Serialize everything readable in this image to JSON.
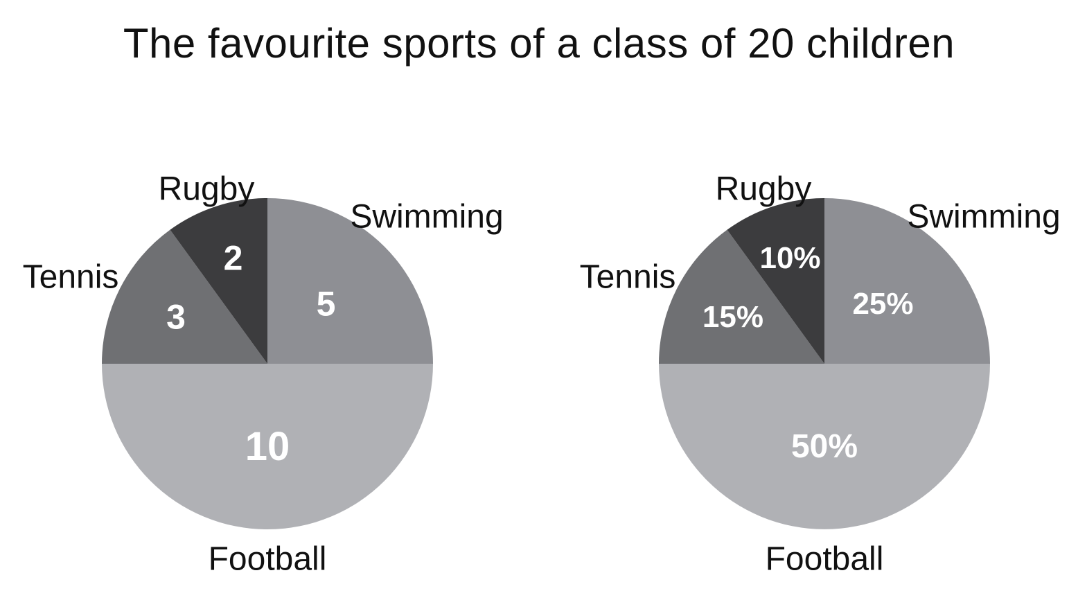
{
  "chart_data": [
    {
      "type": "pie",
      "title": "The favourite sports of a class of 20 children",
      "categories": [
        "Swimming",
        "Football",
        "Tennis",
        "Rugby"
      ],
      "values": [
        5,
        10,
        3,
        2
      ],
      "value_labels": [
        "5",
        "10",
        "3",
        "2"
      ],
      "colors": [
        "#8e8f94",
        "#b0b1b5",
        "#6f7073",
        "#3c3c3e"
      ]
    },
    {
      "type": "pie",
      "categories": [
        "Swimming",
        "Football",
        "Tennis",
        "Rugby"
      ],
      "values": [
        25,
        50,
        15,
        10
      ],
      "value_labels": [
        "25%",
        "50%",
        "15%",
        "10%"
      ],
      "colors": [
        "#8e8f94",
        "#b0b1b5",
        "#6f7073",
        "#3c3c3e"
      ]
    }
  ]
}
